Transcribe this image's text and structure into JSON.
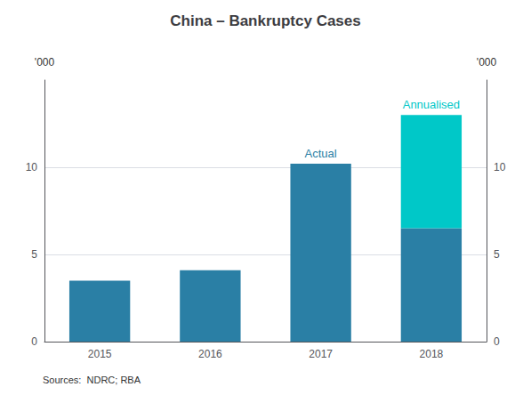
{
  "chart_data": {
    "type": "bar",
    "title": "China – Bankruptcy Cases",
    "categories": [
      "2015",
      "2016",
      "2017",
      "2018"
    ],
    "series": [
      {
        "name": "Actual",
        "color": "#2a7fa5",
        "values": [
          3.5,
          4.1,
          10.2,
          6.5
        ]
      },
      {
        "name": "Annualised",
        "color": "#00c8c8",
        "values": [
          0,
          0,
          0,
          6.5
        ]
      }
    ],
    "stacked": true,
    "ylabel": "'000",
    "y2label": "'000",
    "ylim": [
      0,
      15
    ],
    "yticks": [
      0,
      5,
      10
    ],
    "y2lim": [
      0,
      15
    ],
    "y2ticks": [
      0,
      5,
      10
    ],
    "grid": true,
    "source": "Sources:  NDRC; RBA"
  }
}
